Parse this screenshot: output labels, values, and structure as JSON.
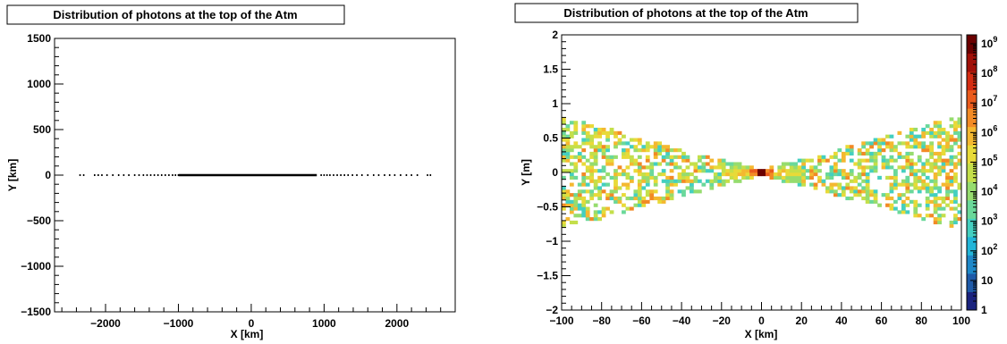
{
  "chart_data": [
    {
      "type": "scatter",
      "title": "Distribution of photons at the top of the Atm",
      "xlabel": "X [km]",
      "ylabel": "Y [km]",
      "xlim": [
        -2700,
        2800
      ],
      "ylim": [
        -1500,
        1500
      ],
      "x_ticks": [
        -2000,
        -1000,
        0,
        1000,
        2000
      ],
      "x_tick_labels": [
        "−2000",
        "−1000",
        "0",
        "1000",
        "2000"
      ],
      "y_ticks": [
        -1500,
        -1000,
        -500,
        0,
        500,
        1000,
        1500
      ],
      "y_tick_labels": [
        "−1500",
        "−1000",
        "−500",
        "0",
        "500",
        "1000",
        "1500"
      ],
      "grid": false,
      "marker_color": "#000000",
      "points": [
        {
          "x": -2350,
          "y": 0
        },
        {
          "x": -2300,
          "y": 0
        },
        {
          "x": -2150,
          "y": 0
        },
        {
          "x": -2100,
          "y": 0
        },
        {
          "x": -2050,
          "y": 0
        },
        {
          "x": -1980,
          "y": 0
        },
        {
          "x": -1900,
          "y": 0
        },
        {
          "x": -1820,
          "y": 0
        },
        {
          "x": -1750,
          "y": 0
        },
        {
          "x": -1680,
          "y": 0
        },
        {
          "x": -1600,
          "y": 0
        },
        {
          "x": -1540,
          "y": 0
        },
        {
          "x": -1480,
          "y": 0
        },
        {
          "x": -1430,
          "y": 0
        },
        {
          "x": -1380,
          "y": 0
        },
        {
          "x": -1330,
          "y": 0
        },
        {
          "x": -1280,
          "y": 0
        },
        {
          "x": -1230,
          "y": 0
        },
        {
          "x": -1180,
          "y": 0
        },
        {
          "x": -1130,
          "y": 0
        },
        {
          "x": -1080,
          "y": 0
        },
        {
          "x": -1040,
          "y": 0
        },
        {
          "x": -1000,
          "y": 0
        },
        {
          "x": -960,
          "y": 0
        },
        {
          "x": 960,
          "y": 0
        },
        {
          "x": 1000,
          "y": 0
        },
        {
          "x": 1040,
          "y": 0
        },
        {
          "x": 1080,
          "y": 0
        },
        {
          "x": 1130,
          "y": 0
        },
        {
          "x": 1180,
          "y": 0
        },
        {
          "x": 1230,
          "y": 0
        },
        {
          "x": 1280,
          "y": 0
        },
        {
          "x": 1330,
          "y": 0
        },
        {
          "x": 1390,
          "y": 0
        },
        {
          "x": 1450,
          "y": 0
        },
        {
          "x": 1520,
          "y": 0
        },
        {
          "x": 1600,
          "y": 0
        },
        {
          "x": 1680,
          "y": 0
        },
        {
          "x": 1750,
          "y": 0
        },
        {
          "x": 1830,
          "y": 0
        },
        {
          "x": 1900,
          "y": 0
        },
        {
          "x": 1970,
          "y": 0
        },
        {
          "x": 2050,
          "y": 0
        },
        {
          "x": 2130,
          "y": 0
        },
        {
          "x": 2200,
          "y": 0
        },
        {
          "x": 2280,
          "y": 0
        },
        {
          "x": 2420,
          "y": 0
        },
        {
          "x": 2460,
          "y": 0
        }
      ],
      "dense_band": {
        "x_from": -1000,
        "x_to": 900,
        "y": 0
      }
    },
    {
      "type": "heatmap",
      "title": "Distribution of photons at the top of the Atm",
      "xlabel": "X [km]",
      "ylabel": "Y [m]",
      "xlim": [
        -100,
        100
      ],
      "ylim": [
        -2,
        2
      ],
      "x_ticks": [
        -100,
        -80,
        -60,
        -40,
        -20,
        0,
        20,
        40,
        60,
        80,
        100
      ],
      "x_tick_labels": [
        "−100",
        "−80",
        "−60",
        "−40",
        "−20",
        "0",
        "20",
        "40",
        "60",
        "80",
        "100"
      ],
      "y_ticks": [
        -2,
        -1.5,
        -1,
        -0.5,
        0,
        0.5,
        1,
        1.5,
        2
      ],
      "y_tick_labels": [
        "−2",
        "−1.5",
        "−1",
        "−0.5",
        "0",
        "0.5",
        "1",
        "1.5",
        "2"
      ],
      "grid": false,
      "bins_x": 100,
      "bins_y": 80,
      "log_z": true,
      "z_range": [
        1,
        2000000000
      ],
      "colorbar_ticks": [
        {
          "value": 1,
          "base": "1",
          "exp": ""
        },
        {
          "value": 10,
          "base": "10",
          "exp": ""
        },
        {
          "value": 100,
          "base": "10",
          "exp": "2"
        },
        {
          "value": 1000,
          "base": "10",
          "exp": "3"
        },
        {
          "value": 10000,
          "base": "10",
          "exp": "4"
        },
        {
          "value": 100000,
          "base": "10",
          "exp": "5"
        },
        {
          "value": 1000000,
          "base": "10",
          "exp": "6"
        },
        {
          "value": 10000000,
          "base": "10",
          "exp": "7"
        },
        {
          "value": 100000000,
          "base": "10",
          "exp": "8"
        },
        {
          "value": 1000000000,
          "base": "10",
          "exp": "9"
        }
      ],
      "colorbar_position": "right",
      "palette": [
        "#1a237e",
        "#1e5aa8",
        "#1e88c8",
        "#22b5d8",
        "#44cfc0",
        "#6ad89a",
        "#96dc6e",
        "#c4df4a",
        "#e8da38",
        "#f4b830",
        "#f28a25",
        "#ea5a1c",
        "#d42c12",
        "#a01008",
        "#6b0000"
      ],
      "description_rows": [
        {
          "y_min": -0.05,
          "y_max": 0.05,
          "x_range": [
            -100,
            100
          ]
        }
      ]
    }
  ]
}
